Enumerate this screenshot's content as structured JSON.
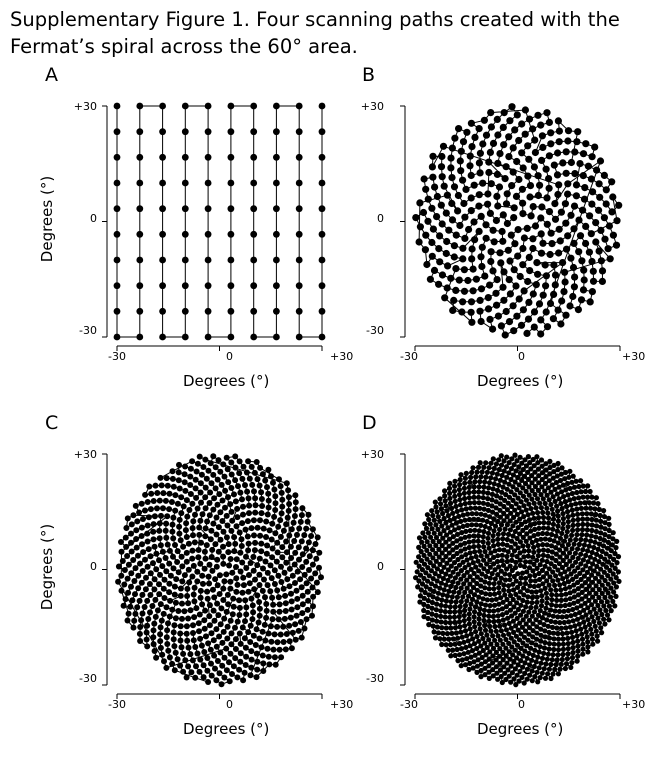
{
  "caption": "Supplementary Figure 1. Four scanning paths created with the Fermat’s spiral across the 60° area.",
  "chart_data": [
    {
      "type": "scatter",
      "panel_label": "A",
      "pattern": "raster grid, serpentine path",
      "grid_points": "10 columns × 10 rows",
      "point_count": 100,
      "xlabel": "Degrees (°)",
      "ylabel": "Degrees (°)",
      "xlim": [
        -30,
        30
      ],
      "ylim": [
        -30,
        30
      ],
      "x_tick_labels": [
        "-30",
        "0",
        "+30"
      ],
      "y_tick_labels": [
        "+30",
        "0",
        "-30"
      ],
      "grid": false
    },
    {
      "type": "scatter",
      "panel_label": "B",
      "pattern": "Fermat's spiral, circular field",
      "point_count": 400,
      "radius": 30,
      "xlabel": "Degrees (°)",
      "ylabel": "Degrees (°)",
      "xlim": [
        -30,
        30
      ],
      "ylim": [
        -30,
        30
      ],
      "x_tick_labels": [
        "-30",
        "0",
        "+30"
      ],
      "y_tick_labels": [
        "+30",
        "0",
        "-30"
      ],
      "grid": false
    },
    {
      "type": "scatter",
      "panel_label": "C",
      "pattern": "Fermat's spiral, circular field",
      "point_count": 800,
      "radius": 30,
      "xlabel": "Degrees (°)",
      "ylabel": "Degrees (°)",
      "xlim": [
        -30,
        30
      ],
      "ylim": [
        -30,
        30
      ],
      "x_tick_labels": [
        "-30",
        "0",
        "+30"
      ],
      "y_tick_labels": [
        "+30",
        "0",
        "-30"
      ],
      "grid": false
    },
    {
      "type": "scatter",
      "panel_label": "D",
      "pattern": "Fermat's spiral, circular field",
      "point_count": 1500,
      "radius": 30,
      "xlabel": "Degrees (°)",
      "ylabel": "Degrees (°)",
      "xlim": [
        -30,
        30
      ],
      "ylim": [
        -30,
        30
      ],
      "x_tick_labels": [
        "-30",
        "0",
        "+30"
      ],
      "y_tick_labels": [
        "+30",
        "0",
        "-30"
      ],
      "grid": false
    }
  ]
}
